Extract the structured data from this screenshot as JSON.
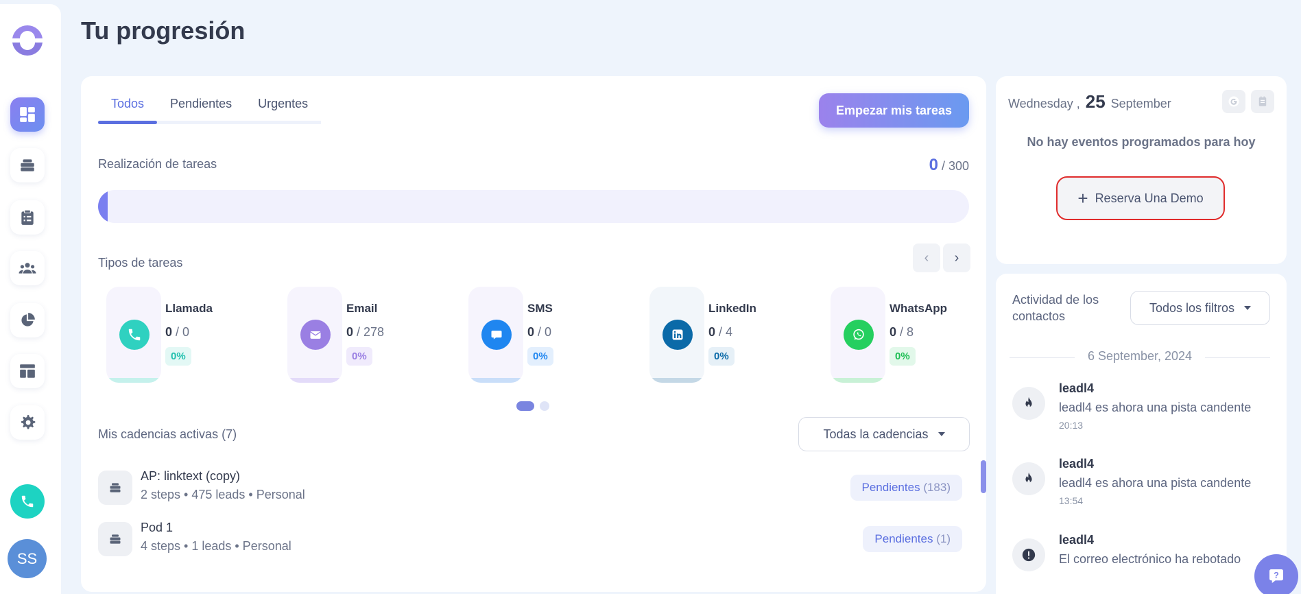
{
  "page": {
    "title": "Tu progresión"
  },
  "sidebar": {
    "items": [
      {
        "name": "dashboard",
        "icon": "dashboard-icon",
        "active": true
      },
      {
        "name": "cadences",
        "icon": "stack-icon",
        "active": false
      },
      {
        "name": "tasks",
        "icon": "clipboard-icon",
        "active": false
      },
      {
        "name": "contacts",
        "icon": "people-icon",
        "active": false
      },
      {
        "name": "reports",
        "icon": "pie-chart-icon",
        "active": false
      },
      {
        "name": "templates",
        "icon": "layout-icon",
        "active": false
      },
      {
        "name": "settings",
        "icon": "gear-icon",
        "active": false
      }
    ],
    "avatar_initials": "SS"
  },
  "main": {
    "tabs": [
      {
        "label": "Todos",
        "active": true
      },
      {
        "label": "Pendientes",
        "active": false
      },
      {
        "label": "Urgentes",
        "active": false
      }
    ],
    "start_button": "Empezar mis tareas",
    "completion": {
      "label": "Realización de tareas",
      "done": "0",
      "total": "/ 300",
      "progress_fraction": 0
    },
    "task_types_label": "Tipos de tareas",
    "task_types": [
      {
        "name": "Llamada",
        "done": "0",
        "total": "/ 0",
        "pct": "0%",
        "color": "#2fd1c0"
      },
      {
        "name": "Email",
        "done": "0",
        "total": "/ 278",
        "pct": "0%",
        "color": "#9a7fe3"
      },
      {
        "name": "SMS",
        "done": "0",
        "total": "/ 0",
        "pct": "0%",
        "color": "#1f86f0"
      },
      {
        "name": "LinkedIn",
        "done": "0",
        "total": "/ 4",
        "pct": "0%",
        "color": "#0b6aa8"
      },
      {
        "name": "WhatsApp",
        "done": "0",
        "total": "/ 8",
        "pct": "0%",
        "color": "#25cf5f"
      }
    ],
    "cadences_label": "Mis cadencias activas (7)",
    "cadences_filter": "Todas la cadencias",
    "cadences": [
      {
        "name": "AP: linktext (copy)",
        "meta": "2 steps • 475 leads • Personal",
        "pending_label": "Pendientes",
        "pending_count": "(183)"
      },
      {
        "name": "Pod 1",
        "meta": "4 steps • 1 leads • Personal",
        "pending_label": "Pendientes",
        "pending_count": "(1)"
      }
    ]
  },
  "calendar": {
    "weekday": "Wednesday ,",
    "day": "25",
    "month": "September",
    "empty_text": "No hay eventos programados para hoy",
    "demo_button": "Reserva Una Demo"
  },
  "activity": {
    "title": "Actividad de los contactos",
    "filter": "Todos los filtros",
    "date": "6 September, 2024",
    "items": [
      {
        "name": "leadl4",
        "text": "leadl4 es ahora una pista candente",
        "time": "20:13",
        "icon": "flame-icon"
      },
      {
        "name": "leadl4",
        "text": "leadl4 es ahora una pista candente",
        "time": "13:54",
        "icon": "flame-icon"
      },
      {
        "name": "leadl4",
        "text": "El correo electrónico ha rebotado",
        "time": "",
        "icon": "alert-icon"
      }
    ]
  }
}
